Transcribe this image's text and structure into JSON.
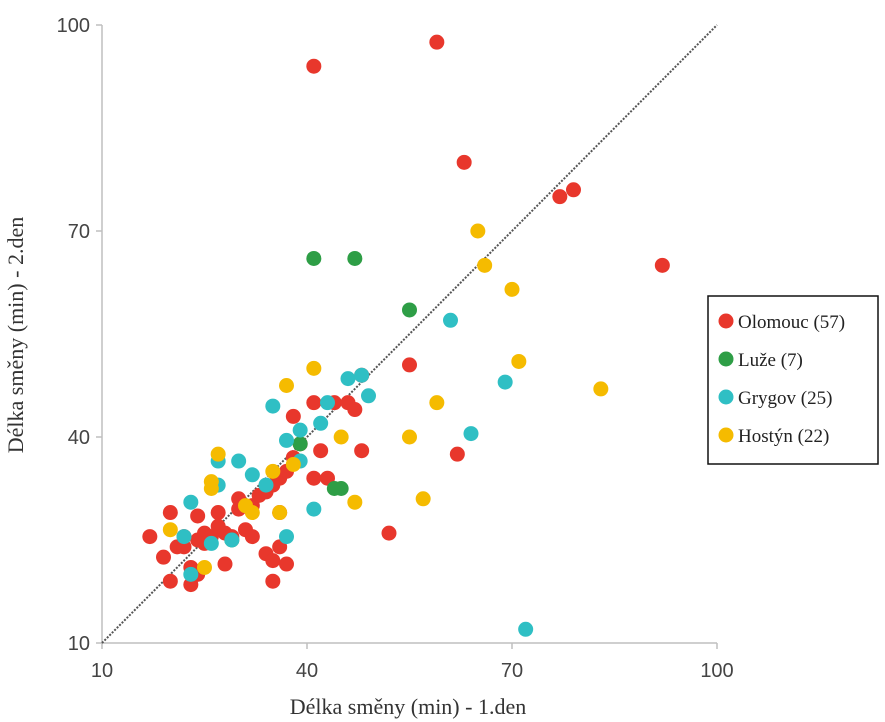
{
  "chart_data": {
    "type": "scatter",
    "title": "",
    "xlabel": "Délka směny (min) - 1.den",
    "ylabel": "Délka směny (min) - 2.den",
    "xlim": [
      10,
      100
    ],
    "ylim": [
      10,
      100
    ],
    "xticks": [
      "10",
      "40",
      "70",
      "100"
    ],
    "yticks": [
      "10",
      "40",
      "70",
      "100"
    ],
    "grid": false,
    "reference_line": "y = x (dotted diagonal)",
    "legend_position": "right",
    "series": [
      {
        "name": "Olomouc (57)",
        "color": "#e8372c",
        "points": [
          [
            17,
            25.5
          ],
          [
            19,
            22.5
          ],
          [
            20,
            19
          ],
          [
            20,
            29
          ],
          [
            21,
            24
          ],
          [
            22,
            25.5
          ],
          [
            22,
            24
          ],
          [
            23,
            21
          ],
          [
            23,
            18.5
          ],
          [
            24,
            25
          ],
          [
            24,
            28.5
          ],
          [
            24,
            20
          ],
          [
            25,
            26
          ],
          [
            25,
            24.5
          ],
          [
            26,
            25.5
          ],
          [
            27,
            29
          ],
          [
            27,
            27
          ],
          [
            28,
            26
          ],
          [
            28,
            21.5
          ],
          [
            29,
            25.5
          ],
          [
            30,
            31
          ],
          [
            30,
            29.5
          ],
          [
            31,
            26.5
          ],
          [
            32,
            30
          ],
          [
            32,
            25.5
          ],
          [
            33,
            31.5
          ],
          [
            34,
            23
          ],
          [
            34,
            32
          ],
          [
            35,
            33
          ],
          [
            35,
            22
          ],
          [
            35,
            19
          ],
          [
            36,
            34
          ],
          [
            36,
            24
          ],
          [
            36,
            29
          ],
          [
            37,
            35
          ],
          [
            37,
            21.5
          ],
          [
            38,
            37
          ],
          [
            38,
            43
          ],
          [
            39,
            39
          ],
          [
            41,
            45
          ],
          [
            41,
            34
          ],
          [
            41,
            94
          ],
          [
            42,
            38
          ],
          [
            43,
            34
          ],
          [
            44,
            45
          ],
          [
            46,
            45
          ],
          [
            47,
            44
          ],
          [
            48,
            38
          ],
          [
            48,
            49
          ],
          [
            52,
            26
          ],
          [
            55,
            50.5
          ],
          [
            59,
            97.5
          ],
          [
            62,
            37.5
          ],
          [
            63,
            80
          ],
          [
            77,
            75
          ],
          [
            79,
            76
          ],
          [
            92,
            65
          ]
        ]
      },
      {
        "name": "Luže (7)",
        "color": "#2e9e46",
        "points": [
          [
            29,
            25
          ],
          [
            39,
            39
          ],
          [
            41,
            66
          ],
          [
            44,
            32.5
          ],
          [
            45,
            32.5
          ],
          [
            47,
            66
          ],
          [
            55,
            58.5
          ]
        ]
      },
      {
        "name": "Grygov (25)",
        "color": "#2fbfc4",
        "points": [
          [
            22,
            25.5
          ],
          [
            23,
            30.5
          ],
          [
            23,
            20
          ],
          [
            26,
            24.5
          ],
          [
            27,
            33
          ],
          [
            27,
            36.5
          ],
          [
            29,
            25
          ],
          [
            30,
            36.5
          ],
          [
            32,
            34.5
          ],
          [
            34,
            33
          ],
          [
            35,
            44.5
          ],
          [
            37,
            25.5
          ],
          [
            37,
            39.5
          ],
          [
            39,
            36.5
          ],
          [
            39,
            41
          ],
          [
            41,
            29.5
          ],
          [
            42,
            42
          ],
          [
            43,
            45
          ],
          [
            46,
            48.5
          ],
          [
            48,
            49
          ],
          [
            49,
            46
          ],
          [
            61,
            57
          ],
          [
            64,
            40.5
          ],
          [
            69,
            48
          ],
          [
            72,
            12
          ]
        ]
      },
      {
        "name": "Hostýn (22)",
        "color": "#f5bb00",
        "points": [
          [
            20,
            26.5
          ],
          [
            25,
            21
          ],
          [
            26,
            32.5
          ],
          [
            26,
            33.5
          ],
          [
            27,
            37.5
          ],
          [
            31,
            30
          ],
          [
            35,
            35
          ],
          [
            36,
            29
          ],
          [
            37,
            47.5
          ],
          [
            38,
            36
          ],
          [
            41,
            50
          ],
          [
            45,
            40
          ],
          [
            47,
            30.5
          ],
          [
            55,
            40
          ],
          [
            57,
            31
          ],
          [
            59,
            45
          ],
          [
            65,
            70
          ],
          [
            66,
            65
          ],
          [
            70,
            61.5
          ],
          [
            71,
            51
          ],
          [
            83,
            47
          ],
          [
            32,
            29
          ]
        ]
      }
    ]
  }
}
